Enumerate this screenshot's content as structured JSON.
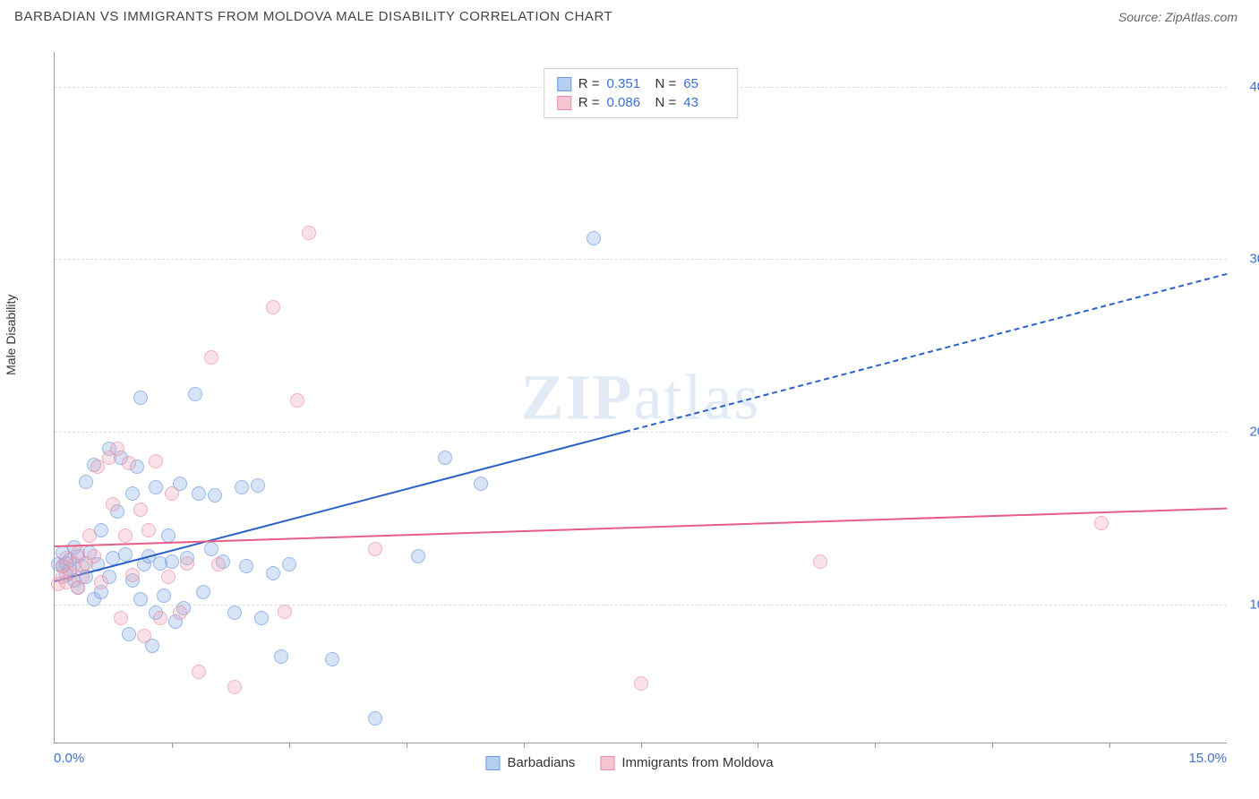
{
  "header": {
    "title": "BARBADIAN VS IMMIGRANTS FROM MOLDOVA MALE DISABILITY CORRELATION CHART",
    "source": "Source: ZipAtlas.com"
  },
  "chart": {
    "type": "scatter",
    "ylabel": "Male Disability",
    "xlim": [
      0,
      15
    ],
    "ylim": [
      2,
      42
    ],
    "xtick_labels": [
      "0.0%",
      "15.0%"
    ],
    "xtick_marks": [
      1.5,
      3.0,
      4.5,
      6.0,
      7.5,
      9.0,
      10.5,
      12.0,
      13.5
    ],
    "yticks": [
      {
        "value": 10,
        "label": "10.0%"
      },
      {
        "value": 20,
        "label": "20.0%"
      },
      {
        "value": 30,
        "label": "30.0%"
      },
      {
        "value": 40,
        "label": "40.0%"
      }
    ],
    "grid_color": "#dddddd",
    "axis_color": "#999999",
    "background_color": "#ffffff",
    "tick_label_color": "#3b6fd6",
    "watermark": "ZIPatlas",
    "correlation_box": {
      "rows": [
        {
          "swatch_fill": "#b5cff0",
          "swatch_border": "#6b9ae0",
          "r_label": "R =",
          "r_value": "0.351",
          "n_label": "N =",
          "n_value": "65"
        },
        {
          "swatch_fill": "#f5c6d2",
          "swatch_border": "#e890a8",
          "r_label": "R =",
          "r_value": "0.086",
          "n_label": "N =",
          "n_value": "43"
        }
      ]
    },
    "bottom_legend": [
      {
        "swatch_fill": "#b5cff0",
        "swatch_border": "#6b9ae0",
        "label": "Barbadians"
      },
      {
        "swatch_fill": "#f5c6d2",
        "swatch_border": "#e890a8",
        "label": "Immigrants from Moldova"
      }
    ],
    "series": [
      {
        "name": "Barbadians",
        "marker_fill": "rgba(140,180,230,0.5)",
        "marker_border": "#6b9ae0",
        "marker_size": 16,
        "trend": {
          "color": "#2b62c9",
          "width": 2,
          "solid_to_x": 7.3,
          "start": {
            "x": 0,
            "y": 11.4
          },
          "end": {
            "x": 15,
            "y": 29.2
          }
        },
        "points": [
          [
            0.05,
            12.3
          ],
          [
            0.1,
            13.0
          ],
          [
            0.1,
            12.2
          ],
          [
            0.15,
            11.7
          ],
          [
            0.15,
            12.4
          ],
          [
            0.2,
            12.0
          ],
          [
            0.2,
            12.6
          ],
          [
            0.25,
            13.3
          ],
          [
            0.25,
            11.4
          ],
          [
            0.3,
            12.8
          ],
          [
            0.3,
            11.0
          ],
          [
            0.35,
            12.2
          ],
          [
            0.4,
            17.1
          ],
          [
            0.4,
            11.6
          ],
          [
            0.45,
            13.0
          ],
          [
            0.5,
            18.1
          ],
          [
            0.5,
            10.3
          ],
          [
            0.55,
            12.3
          ],
          [
            0.6,
            14.3
          ],
          [
            0.6,
            10.7
          ],
          [
            0.7,
            11.6
          ],
          [
            0.7,
            19.0
          ],
          [
            0.75,
            12.7
          ],
          [
            0.8,
            15.4
          ],
          [
            0.85,
            18.5
          ],
          [
            0.9,
            12.9
          ],
          [
            0.95,
            8.3
          ],
          [
            1.0,
            16.4
          ],
          [
            1.0,
            11.4
          ],
          [
            1.05,
            18.0
          ],
          [
            1.1,
            10.3
          ],
          [
            1.1,
            22.0
          ],
          [
            1.15,
            12.3
          ],
          [
            1.2,
            12.8
          ],
          [
            1.25,
            7.6
          ],
          [
            1.3,
            16.8
          ],
          [
            1.3,
            9.5
          ],
          [
            1.35,
            12.4
          ],
          [
            1.4,
            10.5
          ],
          [
            1.45,
            14.0
          ],
          [
            1.5,
            12.5
          ],
          [
            1.55,
            9.0
          ],
          [
            1.6,
            17.0
          ],
          [
            1.65,
            9.8
          ],
          [
            1.7,
            12.7
          ],
          [
            1.8,
            22.2
          ],
          [
            1.85,
            16.4
          ],
          [
            1.9,
            10.7
          ],
          [
            2.0,
            13.2
          ],
          [
            2.05,
            16.3
          ],
          [
            2.15,
            12.5
          ],
          [
            2.3,
            9.5
          ],
          [
            2.4,
            16.8
          ],
          [
            2.45,
            12.2
          ],
          [
            2.6,
            16.9
          ],
          [
            2.65,
            9.2
          ],
          [
            2.8,
            11.8
          ],
          [
            2.9,
            7.0
          ],
          [
            3.0,
            12.3
          ],
          [
            3.55,
            6.8
          ],
          [
            4.1,
            3.4
          ],
          [
            4.65,
            12.8
          ],
          [
            5.0,
            18.5
          ],
          [
            5.45,
            17.0
          ],
          [
            6.9,
            31.2
          ]
        ]
      },
      {
        "name": "Immigrants from Moldova",
        "marker_fill": "rgba(240,170,190,0.5)",
        "marker_border": "#e890a8",
        "marker_size": 16,
        "trend": {
          "color": "#e85d85",
          "width": 2,
          "solid_to_x": 15,
          "start": {
            "x": 0,
            "y": 13.4
          },
          "end": {
            "x": 15,
            "y": 15.6
          }
        },
        "points": [
          [
            0.05,
            11.2
          ],
          [
            0.1,
            11.6
          ],
          [
            0.1,
            12.2
          ],
          [
            0.15,
            12.7
          ],
          [
            0.15,
            11.3
          ],
          [
            0.2,
            11.8
          ],
          [
            0.25,
            12.3
          ],
          [
            0.3,
            11.0
          ],
          [
            0.3,
            13.0
          ],
          [
            0.35,
            11.6
          ],
          [
            0.4,
            12.4
          ],
          [
            0.45,
            14.0
          ],
          [
            0.5,
            12.8
          ],
          [
            0.55,
            18.0
          ],
          [
            0.6,
            11.3
          ],
          [
            0.7,
            18.5
          ],
          [
            0.75,
            15.8
          ],
          [
            0.8,
            19.0
          ],
          [
            0.85,
            9.2
          ],
          [
            0.9,
            14.0
          ],
          [
            0.95,
            18.2
          ],
          [
            1.0,
            11.7
          ],
          [
            1.1,
            15.5
          ],
          [
            1.15,
            8.2
          ],
          [
            1.2,
            14.3
          ],
          [
            1.3,
            18.3
          ],
          [
            1.35,
            9.2
          ],
          [
            1.45,
            11.6
          ],
          [
            1.5,
            16.4
          ],
          [
            1.6,
            9.5
          ],
          [
            1.7,
            12.4
          ],
          [
            1.85,
            6.1
          ],
          [
            2.0,
            24.3
          ],
          [
            2.1,
            12.3
          ],
          [
            2.3,
            5.2
          ],
          [
            2.8,
            27.2
          ],
          [
            2.95,
            9.6
          ],
          [
            3.1,
            21.8
          ],
          [
            3.25,
            31.5
          ],
          [
            4.1,
            13.2
          ],
          [
            7.5,
            5.4
          ],
          [
            9.8,
            12.5
          ],
          [
            13.4,
            14.7
          ]
        ]
      }
    ]
  }
}
